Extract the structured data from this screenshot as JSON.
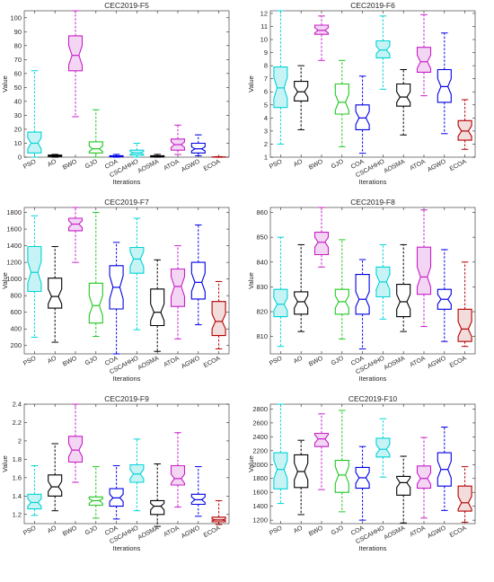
{
  "figure": {
    "background": "#ffffff"
  },
  "chart_data": [
    {
      "type": "boxplot",
      "title": "CEC2019-F5",
      "xlabel": "Iterations",
      "ylabel": "Value",
      "ylim": [
        0,
        105
      ],
      "yticks": [
        0,
        10,
        20,
        30,
        40,
        50,
        60,
        70,
        80,
        90,
        100
      ],
      "yticklabels": [
        "0",
        "10",
        "20",
        "30",
        "40",
        "50",
        "60",
        "70",
        "80",
        "90",
        "100"
      ],
      "categories": [
        "PSO",
        "AO",
        "BWO",
        "GJO",
        "COA",
        "CSCAHHO",
        "AOSMA",
        "ATOA",
        "AGWO",
        "ECOA"
      ],
      "boxes": [
        {
          "min": 0,
          "q1": 3,
          "median": 10,
          "q3": 18,
          "max": 62,
          "notch": [
            6,
            14
          ]
        },
        {
          "min": 0,
          "q1": 0.5,
          "median": 1,
          "q3": 1.5,
          "max": 2,
          "notch": [
            0.8,
            1.2
          ]
        },
        {
          "min": 29,
          "q1": 62,
          "median": 73,
          "q3": 87,
          "max": 105,
          "notch": [
            66,
            80
          ]
        },
        {
          "min": 0,
          "q1": 3,
          "median": 6,
          "q3": 11,
          "max": 34,
          "notch": [
            4,
            8
          ]
        },
        {
          "min": 0,
          "q1": 0.3,
          "median": 0.6,
          "q3": 1,
          "max": 2,
          "notch": [
            0.4,
            0.8
          ]
        },
        {
          "min": 0,
          "q1": 1.5,
          "median": 3,
          "q3": 5,
          "max": 10,
          "notch": [
            2,
            4
          ]
        },
        {
          "min": 0,
          "q1": 0.2,
          "median": 0.5,
          "q3": 1,
          "max": 2,
          "notch": [
            0.3,
            0.7
          ]
        },
        {
          "min": 2,
          "q1": 5,
          "median": 9,
          "q3": 13,
          "max": 23,
          "notch": [
            7,
            11
          ]
        },
        {
          "min": 1,
          "q1": 3,
          "median": 6,
          "q3": 10,
          "max": 16,
          "notch": [
            4.5,
            7.5
          ]
        },
        {
          "min": 0,
          "q1": 0,
          "median": 0,
          "q3": 0.2,
          "max": 0.4,
          "notch": [
            0,
            0.1
          ]
        }
      ]
    },
    {
      "type": "boxplot",
      "title": "CEC2019-F6",
      "xlabel": "Iterations",
      "ylabel": "Value",
      "ylim": [
        1,
        12.2
      ],
      "yticks": [
        1,
        2,
        3,
        4,
        5,
        6,
        7,
        8,
        9,
        10,
        11,
        12
      ],
      "yticklabels": [
        "1",
        "2",
        "3",
        "4",
        "5",
        "6",
        "7",
        "8",
        "9",
        "10",
        "11",
        "12"
      ],
      "categories": [
        "PSO",
        "AO",
        "BWO",
        "GJO",
        "COA",
        "CSCAHHO",
        "AOSMA",
        "ATOA",
        "AGWO",
        "ECOA"
      ],
      "boxes": [
        {
          "min": 2,
          "q1": 4.8,
          "median": 6.3,
          "q3": 7.9,
          "max": 12.2,
          "notch": [
            5.5,
            7.1
          ]
        },
        {
          "min": 3.1,
          "q1": 5.3,
          "median": 6,
          "q3": 6.8,
          "max": 8,
          "notch": [
            5.6,
            6.4
          ]
        },
        {
          "min": 8.4,
          "q1": 10.4,
          "median": 10.7,
          "q3": 11.1,
          "max": 11.8,
          "notch": [
            10.5,
            10.9
          ]
        },
        {
          "min": 1.8,
          "q1": 4.3,
          "median": 5.2,
          "q3": 6.6,
          "max": 8.4,
          "notch": [
            4.6,
            5.8
          ]
        },
        {
          "min": 1.3,
          "q1": 3.1,
          "median": 4,
          "q3": 5,
          "max": 7.2,
          "notch": [
            3.5,
            4.5
          ]
        },
        {
          "min": 6.2,
          "q1": 8.6,
          "median": 9.2,
          "q3": 9.9,
          "max": 11.8,
          "notch": [
            8.9,
            9.5
          ]
        },
        {
          "min": 2.7,
          "q1": 4.9,
          "median": 5.6,
          "q3": 6.6,
          "max": 7.7,
          "notch": [
            5.2,
            6
          ]
        },
        {
          "min": 5.7,
          "q1": 7.5,
          "median": 8.3,
          "q3": 9.4,
          "max": 11.9,
          "notch": [
            7.8,
            8.8
          ]
        },
        {
          "min": 2.8,
          "q1": 5.2,
          "median": 6.4,
          "q3": 7.7,
          "max": 10.5,
          "notch": [
            5.8,
            7
          ]
        },
        {
          "min": 1.6,
          "q1": 2.3,
          "median": 3,
          "q3": 3.8,
          "max": 5.4,
          "notch": [
            2.6,
            3.4
          ]
        }
      ]
    },
    {
      "type": "boxplot",
      "title": "CEC2019-F7",
      "xlabel": "Iterations",
      "ylabel": "Value",
      "ylim": [
        100,
        1860
      ],
      "yticks": [
        200,
        400,
        600,
        800,
        1000,
        1200,
        1400,
        1600,
        1800
      ],
      "yticklabels": [
        "200",
        "400",
        "600",
        "800",
        "1000",
        "1200",
        "1400",
        "1600",
        "1800"
      ],
      "categories": [
        "PSO",
        "AO",
        "BWO",
        "GJO",
        "COA",
        "CSCAHHO",
        "AOSMA",
        "ATOA",
        "AGWO",
        "ECOA"
      ],
      "boxes": [
        {
          "min": 300,
          "q1": 850,
          "median": 1080,
          "q3": 1390,
          "max": 1760,
          "notch": [
            950,
            1210
          ]
        },
        {
          "min": 240,
          "q1": 650,
          "median": 790,
          "q3": 1010,
          "max": 1390,
          "notch": [
            700,
            880
          ]
        },
        {
          "min": 1200,
          "q1": 1580,
          "median": 1660,
          "q3": 1730,
          "max": 1860,
          "notch": [
            1620,
            1700
          ]
        },
        {
          "min": 310,
          "q1": 470,
          "median": 680,
          "q3": 950,
          "max": 1800,
          "notch": [
            560,
            800
          ]
        },
        {
          "min": 100,
          "q1": 640,
          "median": 900,
          "q3": 1160,
          "max": 1440,
          "notch": [
            760,
            1040
          ]
        },
        {
          "min": 390,
          "q1": 1070,
          "median": 1240,
          "q3": 1380,
          "max": 1730,
          "notch": [
            1150,
            1330
          ]
        },
        {
          "min": 130,
          "q1": 440,
          "median": 600,
          "q3": 880,
          "max": 1230,
          "notch": [
            500,
            700
          ]
        },
        {
          "min": 280,
          "q1": 670,
          "median": 910,
          "q3": 1120,
          "max": 1400,
          "notch": [
            790,
            1030
          ]
        },
        {
          "min": 450,
          "q1": 760,
          "median": 960,
          "q3": 1200,
          "max": 1650,
          "notch": [
            850,
            1070
          ]
        },
        {
          "min": 160,
          "q1": 320,
          "median": 490,
          "q3": 730,
          "max": 970,
          "notch": [
            400,
            580
          ]
        }
      ]
    },
    {
      "type": "boxplot",
      "title": "CEC2019-F8",
      "xlabel": "Iterations",
      "ylabel": "Value",
      "ylim": [
        803,
        862
      ],
      "yticks": [
        810,
        820,
        830,
        840,
        850,
        860
      ],
      "yticklabels": [
        "810",
        "820",
        "830",
        "840",
        "850",
        "860"
      ],
      "categories": [
        "PSO",
        "AO",
        "BWO",
        "GJO",
        "COA",
        "CSCAHHO",
        "AOSMA",
        "ATOA",
        "AGWO",
        "ECOA"
      ],
      "boxes": [
        {
          "min": 806,
          "q1": 818,
          "median": 823,
          "q3": 829,
          "max": 850,
          "notch": [
            820.5,
            825.5
          ]
        },
        {
          "min": 812,
          "q1": 819,
          "median": 824,
          "q3": 828,
          "max": 847,
          "notch": [
            821.5,
            826.5
          ]
        },
        {
          "min": 838,
          "q1": 843,
          "median": 848,
          "q3": 852,
          "max": 862,
          "notch": [
            846,
            850
          ]
        },
        {
          "min": 809,
          "q1": 819,
          "median": 824,
          "q3": 829,
          "max": 849,
          "notch": [
            821.5,
            826.5
          ]
        },
        {
          "min": 805,
          "q1": 819,
          "median": 825,
          "q3": 835,
          "max": 841,
          "notch": [
            822,
            828
          ]
        },
        {
          "min": 817,
          "q1": 826,
          "median": 832,
          "q3": 838,
          "max": 847,
          "notch": [
            829,
            835
          ]
        },
        {
          "min": 812,
          "q1": 818,
          "median": 824,
          "q3": 831,
          "max": 847,
          "notch": [
            821,
            827
          ]
        },
        {
          "min": 814,
          "q1": 827,
          "median": 834,
          "q3": 846,
          "max": 861,
          "notch": [
            830,
            838
          ]
        },
        {
          "min": 808,
          "q1": 821,
          "median": 825,
          "q3": 829,
          "max": 845,
          "notch": [
            823,
            827
          ]
        },
        {
          "min": 806,
          "q1": 808,
          "median": 813,
          "q3": 821,
          "max": 840,
          "notch": [
            810,
            816
          ]
        }
      ]
    },
    {
      "type": "boxplot",
      "title": "CEC2019-F9",
      "xlabel": "Iterations",
      "ylabel": "Value",
      "ylim": [
        1.1,
        2.4
      ],
      "yticks": [
        1.2,
        1.4,
        1.6,
        1.8,
        2,
        2.2,
        2.4
      ],
      "yticklabels": [
        "1.2",
        "1.4",
        "1.6",
        "1.8",
        "2",
        "2.2",
        "2.4"
      ],
      "categories": [
        "PSO",
        "AO",
        "BWO",
        "GJO",
        "COA",
        "CSCAHHO",
        "AOSMA",
        "ATOA",
        "AGWO",
        "ECOA"
      ],
      "boxes": [
        {
          "min": 1.19,
          "q1": 1.26,
          "median": 1.33,
          "q3": 1.42,
          "max": 1.73,
          "notch": [
            1.29,
            1.37
          ]
        },
        {
          "min": 1.24,
          "q1": 1.4,
          "median": 1.5,
          "q3": 1.63,
          "max": 1.97,
          "notch": [
            1.45,
            1.56
          ]
        },
        {
          "min": 1.55,
          "q1": 1.77,
          "median": 1.9,
          "q3": 2.05,
          "max": 2.4,
          "notch": [
            1.83,
            1.97
          ]
        },
        {
          "min": 1.16,
          "q1": 1.3,
          "median": 1.35,
          "q3": 1.39,
          "max": 1.72,
          "notch": [
            1.32,
            1.37
          ]
        },
        {
          "min": 1.15,
          "q1": 1.29,
          "median": 1.38,
          "q3": 1.48,
          "max": 1.73,
          "notch": [
            1.34,
            1.42
          ]
        },
        {
          "min": 1.24,
          "q1": 1.55,
          "median": 1.64,
          "q3": 1.74,
          "max": 2.02,
          "notch": [
            1.59,
            1.69
          ]
        },
        {
          "min": 1.07,
          "q1": 1.2,
          "median": 1.29,
          "q3": 1.35,
          "max": 1.75,
          "notch": [
            1.25,
            1.32
          ]
        },
        {
          "min": 1.28,
          "q1": 1.52,
          "median": 1.59,
          "q3": 1.73,
          "max": 2.09,
          "notch": [
            1.54,
            1.64
          ]
        },
        {
          "min": 1.18,
          "q1": 1.31,
          "median": 1.36,
          "q3": 1.42,
          "max": 1.72,
          "notch": [
            1.33,
            1.39
          ]
        },
        {
          "min": 1.09,
          "q1": 1.12,
          "median": 1.14,
          "q3": 1.17,
          "max": 1.35,
          "notch": [
            1.13,
            1.15
          ]
        }
      ]
    },
    {
      "type": "boxplot",
      "title": "CEC2019-F10",
      "xlabel": "Iterations",
      "ylabel": "Value",
      "ylim": [
        1150,
        2870
      ],
      "yticks": [
        1200,
        1400,
        1600,
        1800,
        2000,
        2200,
        2400,
        2600,
        2800
      ],
      "yticklabels": [
        "1200",
        "1400",
        "1600",
        "1800",
        "2000",
        "2200",
        "2400",
        "2600",
        "2800"
      ],
      "categories": [
        "PSO",
        "AO",
        "BWO",
        "GJO",
        "COA",
        "CSCAHHO",
        "AOSMA",
        "ATOA",
        "AGWO",
        "ECOA"
      ],
      "boxes": [
        {
          "min": 1440,
          "q1": 1650,
          "median": 1930,
          "q3": 2170,
          "max": 2870,
          "notch": [
            1800,
            2060
          ]
        },
        {
          "min": 1280,
          "q1": 1670,
          "median": 1900,
          "q3": 2140,
          "max": 2350,
          "notch": [
            1780,
            2020
          ]
        },
        {
          "min": 1640,
          "q1": 2260,
          "median": 2370,
          "q3": 2450,
          "max": 2730,
          "notch": [
            2310,
            2430
          ]
        },
        {
          "min": 1320,
          "q1": 1600,
          "median": 1850,
          "q3": 2060,
          "max": 2780,
          "notch": [
            1730,
            1970
          ]
        },
        {
          "min": 1200,
          "q1": 1660,
          "median": 1810,
          "q3": 1960,
          "max": 2260,
          "notch": [
            1730,
            1890
          ]
        },
        {
          "min": 1820,
          "q1": 2110,
          "median": 2220,
          "q3": 2380,
          "max": 2660,
          "notch": [
            2150,
            2290
          ]
        },
        {
          "min": 1160,
          "q1": 1560,
          "median": 1740,
          "q3": 1830,
          "max": 2120,
          "notch": [
            1670,
            1810
          ]
        },
        {
          "min": 1230,
          "q1": 1660,
          "median": 1800,
          "q3": 1980,
          "max": 2390,
          "notch": [
            1720,
            1880
          ]
        },
        {
          "min": 1340,
          "q1": 1690,
          "median": 1930,
          "q3": 2170,
          "max": 2540,
          "notch": [
            1810,
            2050
          ]
        },
        {
          "min": 1170,
          "q1": 1330,
          "median": 1450,
          "q3": 1690,
          "max": 1970,
          "notch": [
            1360,
            1540
          ]
        }
      ]
    }
  ],
  "series_colors": [
    "#00d4d8",
    "#000000",
    "#c81ec8",
    "#1ec81e",
    "#0000e6",
    "#00d4d8",
    "#000000",
    "#c81ec8",
    "#0000e6",
    "#b40000"
  ],
  "series_fills": [
    "#c8f3f5",
    "#ffffff",
    "#f3d6f3",
    "#ffffff",
    "#ffffff",
    "#c8f3f5",
    "#ffffff",
    "#f3d6f3",
    "#ffffff",
    "#f3dcdc"
  ]
}
